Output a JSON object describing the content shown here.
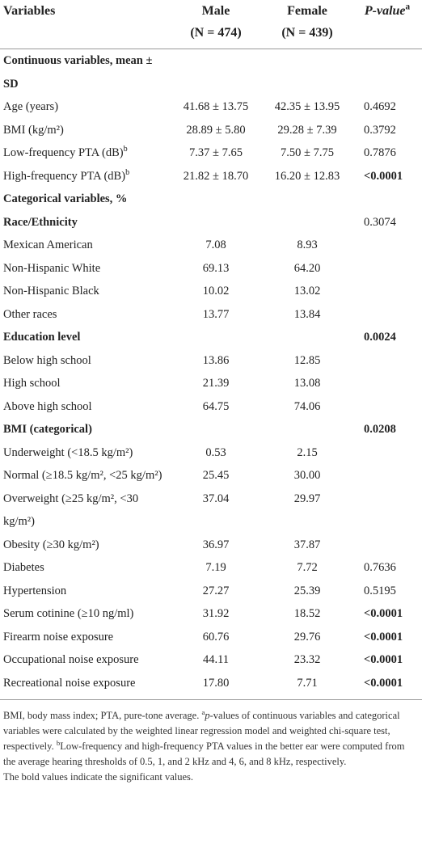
{
  "header": {
    "variables": "Variables",
    "male": "Male",
    "male_n": "(N = 474)",
    "female": "Female",
    "female_n": "(N = 439)",
    "p_value": "P-value",
    "p_value_sup": "a"
  },
  "table": {
    "rows": [
      {
        "label": "Continuous variables, mean ± SD",
        "style": "heading"
      },
      {
        "label": "Age (years)",
        "male": "41.68 ± 13.75",
        "female": "42.35 ± 13.95",
        "p_value": "0.4692"
      },
      {
        "label": "BMI (kg/m²)",
        "male": "28.89 ± 5.80",
        "female": "29.28 ± 7.39",
        "p_value": "0.3792"
      },
      {
        "label": "Low-frequency PTA (dB)",
        "label_sup": "b",
        "male": "7.37 ± 7.65",
        "female": "7.50 ± 7.75",
        "p_value": "0.7876"
      },
      {
        "label": "High-frequency PTA (dB)",
        "label_sup": "b",
        "male": "21.82 ± 18.70",
        "female": "16.20 ± 12.83",
        "p_value": "<0.0001",
        "bold_p": true
      },
      {
        "label": "Categorical variables, %",
        "style": "heading"
      },
      {
        "label": "Race/Ethnicity",
        "style": "heading",
        "p_value": "0.3074"
      },
      {
        "label": "Mexican American",
        "male": "7.08",
        "female": "8.93"
      },
      {
        "label": "Non-Hispanic White",
        "male": "69.13",
        "female": "64.20"
      },
      {
        "label": "Non-Hispanic Black",
        "male": "10.02",
        "female": "13.02"
      },
      {
        "label": "Other races",
        "male": "13.77",
        "female": "13.84"
      },
      {
        "label": "Education level",
        "style": "heading",
        "p_value": "0.0024",
        "bold_p": true
      },
      {
        "label": "Below high school",
        "male": "13.86",
        "female": "12.85"
      },
      {
        "label": "High school",
        "male": "21.39",
        "female": "13.08"
      },
      {
        "label": "Above high school",
        "male": "64.75",
        "female": "74.06"
      },
      {
        "label": "BMI (categorical)",
        "style": "heading",
        "p_value": "0.0208",
        "bold_p": true
      },
      {
        "label": "Underweight (<18.5 kg/m²)",
        "male": "0.53",
        "female": "2.15"
      },
      {
        "label": "Normal (≥18.5 kg/m², <25 kg/m²)",
        "male": "25.45",
        "female": "30.00"
      },
      {
        "label": "Overweight (≥25 kg/m², <30 kg/m²)",
        "male": "37.04",
        "female": "29.97"
      },
      {
        "label": "Obesity (≥30 kg/m²)",
        "male": "36.97",
        "female": "37.87"
      },
      {
        "label": "Diabetes",
        "male": "7.19",
        "female": "7.72",
        "p_value": "0.7636"
      },
      {
        "label": "Hypertension",
        "male": "27.27",
        "female": "25.39",
        "p_value": "0.5195"
      },
      {
        "label": "Serum cotinine (≥10 ng/ml)",
        "male": "31.92",
        "female": "18.52",
        "p_value": "<0.0001",
        "bold_p": true
      },
      {
        "label": "Firearm noise exposure",
        "male": "60.76",
        "female": "29.76",
        "p_value": "<0.0001",
        "bold_p": true
      },
      {
        "label": "Occupational noise exposure",
        "male": "44.11",
        "female": "23.32",
        "p_value": "<0.0001",
        "bold_p": true
      },
      {
        "label": "Recreational noise exposure",
        "male": "17.80",
        "female": "7.71",
        "p_value": "<0.0001",
        "bold_p": true
      }
    ]
  },
  "footnote": {
    "segments": [
      {
        "text": "BMI, body mass index; PTA, pure-tone average. ",
        "format": "plain"
      },
      {
        "text": "a",
        "format": "sup"
      },
      {
        "text": "p",
        "format": "italic"
      },
      {
        "text": "-values of continuous variables and categorical variables were calculated by the weighted linear regression model and weighted chi-square test, respectively. ",
        "format": "plain"
      },
      {
        "text": "b",
        "format": "sup"
      },
      {
        "text": "Low-frequency and high-frequency PTA values in the better ear were computed from the average hearing thresholds of 0.5, 1, and 2 kHz and 4, 6, and 8 kHz, respectively.",
        "format": "plain"
      }
    ],
    "note": "The bold values indicate the significant values."
  }
}
